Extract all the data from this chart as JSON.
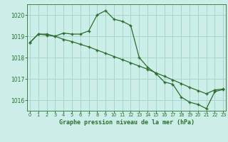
{
  "xlabel": "Graphe pression niveau de la mer (hPa)",
  "bg_color": "#cceee8",
  "grid_color": "#aad4cc",
  "line_color": "#2d6e2d",
  "marker": "+",
  "ylim": [
    1015.5,
    1020.5
  ],
  "xlim": [
    -0.3,
    23.3
  ],
  "yticks": [
    1016,
    1017,
    1018,
    1019,
    1020
  ],
  "xticks": [
    0,
    1,
    2,
    3,
    4,
    5,
    6,
    7,
    8,
    9,
    10,
    11,
    12,
    13,
    14,
    15,
    16,
    17,
    18,
    19,
    20,
    21,
    22,
    23
  ],
  "series1_x": [
    0,
    1,
    2,
    3,
    4,
    5,
    6,
    7,
    8,
    9,
    10,
    11,
    12,
    13,
    14,
    15,
    16,
    17,
    18,
    19,
    20,
    21,
    22,
    23
  ],
  "series1_y": [
    1018.7,
    1019.1,
    1019.1,
    1019.0,
    1019.15,
    1019.1,
    1019.1,
    1019.25,
    1020.0,
    1020.2,
    1019.8,
    1019.7,
    1019.5,
    1018.0,
    1017.55,
    1017.25,
    1016.85,
    1016.75,
    1016.15,
    1015.9,
    1015.8,
    1015.6,
    1016.4,
    1016.5
  ],
  "series2_x": [
    0,
    1,
    2,
    3,
    4,
    5,
    6,
    7,
    8,
    9,
    10,
    11,
    12,
    13,
    14,
    15,
    16,
    17,
    18,
    19,
    20,
    21,
    22,
    23
  ],
  "series2_y": [
    1018.7,
    1019.1,
    1019.05,
    1019.0,
    1018.85,
    1018.75,
    1018.62,
    1018.5,
    1018.35,
    1018.2,
    1018.05,
    1017.9,
    1017.75,
    1017.6,
    1017.45,
    1017.28,
    1017.12,
    1016.95,
    1016.78,
    1016.6,
    1016.45,
    1016.3,
    1016.48,
    1016.52
  ]
}
